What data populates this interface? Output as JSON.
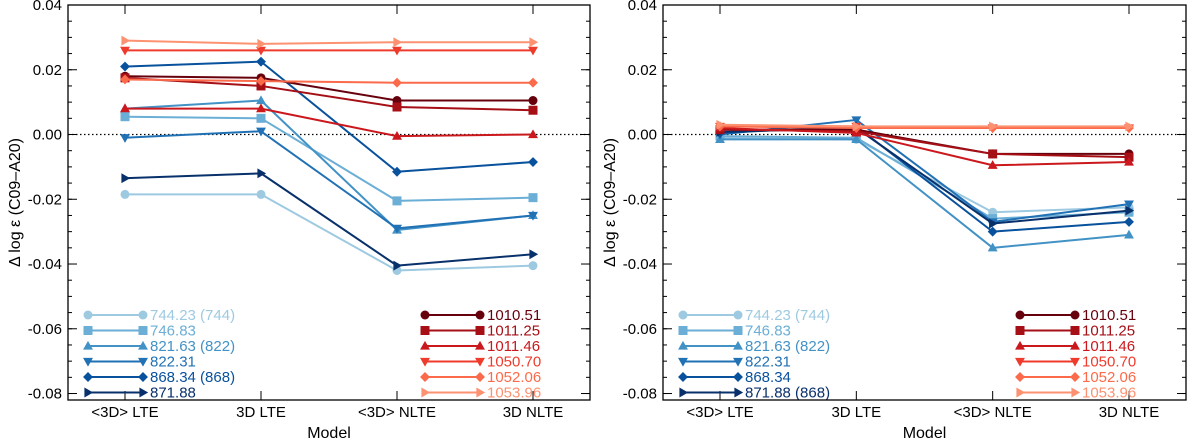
{
  "chart_data": [
    {
      "type": "line",
      "panel": "left",
      "xlabel": "Model",
      "ylabel": "Δ log ε (C09–A20)",
      "categories": [
        "<3D> LTE",
        "3D LTE",
        "<3D> NLTE",
        "3D NLTE"
      ],
      "ylim": [
        -0.082,
        0.04
      ],
      "yticks": [
        "0.04",
        "0.02",
        "0.00",
        "-0.02",
        "-0.04",
        "-0.06",
        "-0.08"
      ],
      "reference_line": 0.0,
      "series": [
        {
          "name": "744.23",
          "tag": "(744)",
          "color": "#9ecae1",
          "marker": "circle",
          "values": [
            -0.0185,
            -0.0185,
            -0.042,
            -0.0405
          ]
        },
        {
          "name": "746.83",
          "tag": "",
          "color": "#6baed6",
          "marker": "square",
          "values": [
            0.0055,
            0.005,
            -0.0205,
            -0.0195
          ]
        },
        {
          "name": "821.63",
          "tag": "(822)",
          "color": "#4292c6",
          "marker": "triangle-up",
          "values": [
            0.008,
            0.0105,
            -0.0295,
            -0.025
          ]
        },
        {
          "name": "822.31",
          "tag": "",
          "color": "#2171b5",
          "marker": "triangle-down",
          "values": [
            -0.001,
            0.001,
            -0.029,
            -0.025
          ]
        },
        {
          "name": "868.34",
          "tag": "(868)",
          "color": "#08519c",
          "marker": "diamond",
          "values": [
            0.021,
            0.0225,
            -0.0115,
            -0.0085
          ]
        },
        {
          "name": "871.88",
          "tag": "",
          "color": "#08306b",
          "marker": "triangle-right",
          "values": [
            -0.0135,
            -0.012,
            -0.0405,
            -0.037
          ]
        },
        {
          "name": "1010.51",
          "tag": "",
          "color": "#67000d",
          "marker": "circle",
          "values": [
            0.018,
            0.0175,
            0.0105,
            0.0105
          ]
        },
        {
          "name": "1011.25",
          "tag": "",
          "color": "#a50f15",
          "marker": "square",
          "values": [
            0.0175,
            0.015,
            0.0085,
            0.0075
          ]
        },
        {
          "name": "1011.46",
          "tag": "",
          "color": "#cb181d",
          "marker": "triangle-up",
          "values": [
            0.008,
            0.008,
            -0.0005,
            0.0
          ]
        },
        {
          "name": "1050.70",
          "tag": "",
          "color": "#ef3b2c",
          "marker": "triangle-down",
          "values": [
            0.026,
            0.026,
            0.026,
            0.026
          ]
        },
        {
          "name": "1052.06",
          "tag": "",
          "color": "#fb6a4a",
          "marker": "diamond",
          "values": [
            0.017,
            0.0165,
            0.016,
            0.016
          ]
        },
        {
          "name": "1053.96",
          "tag": "",
          "color": "#fc9272",
          "marker": "triangle-right",
          "values": [
            0.029,
            0.028,
            0.0285,
            0.0285
          ]
        }
      ]
    },
    {
      "type": "line",
      "panel": "right",
      "xlabel": "Model",
      "ylabel": "Δ log ε (C09–A20)",
      "categories": [
        "<3D> LTE",
        "3D LTE",
        "<3D> NLTE",
        "3D NLTE"
      ],
      "ylim": [
        -0.082,
        0.04
      ],
      "yticks": [
        "0.04",
        "0.02",
        "0.00",
        "-0.02",
        "-0.04",
        "-0.06",
        "-0.08"
      ],
      "reference_line": 0.0,
      "series": [
        {
          "name": "744.23",
          "tag": "(744)",
          "color": "#9ecae1",
          "marker": "circle",
          "values": [
            -0.001,
            -0.0015,
            -0.024,
            -0.0225
          ]
        },
        {
          "name": "746.83",
          "tag": "",
          "color": "#6baed6",
          "marker": "square",
          "values": [
            -0.0005,
            -0.001,
            -0.026,
            -0.024
          ]
        },
        {
          "name": "821.63",
          "tag": "(822)",
          "color": "#4292c6",
          "marker": "triangle-up",
          "values": [
            -0.0015,
            -0.0015,
            -0.035,
            -0.031
          ]
        },
        {
          "name": "822.31",
          "tag": "",
          "color": "#2171b5",
          "marker": "triangle-down",
          "values": [
            0.0,
            0.0045,
            -0.027,
            -0.0215
          ]
        },
        {
          "name": "868.34",
          "tag": "",
          "color": "#08519c",
          "marker": "diamond",
          "values": [
            0.0005,
            0.0025,
            -0.03,
            -0.027
          ]
        },
        {
          "name": "871.88",
          "tag": "(868)",
          "color": "#08306b",
          "marker": "triangle-right",
          "values": [
            0.0008,
            0.002,
            -0.0275,
            -0.0235
          ]
        },
        {
          "name": "1010.51",
          "tag": "",
          "color": "#67000d",
          "marker": "circle",
          "values": [
            0.0015,
            0.0015,
            -0.006,
            -0.006
          ]
        },
        {
          "name": "1011.25",
          "tag": "",
          "color": "#a50f15",
          "marker": "square",
          "values": [
            0.0015,
            0.001,
            -0.006,
            -0.007
          ]
        },
        {
          "name": "1011.46",
          "tag": "",
          "color": "#cb181d",
          "marker": "triangle-up",
          "values": [
            0.002,
            0.0005,
            -0.0095,
            -0.0085
          ]
        },
        {
          "name": "1050.70",
          "tag": "",
          "color": "#ef3b2c",
          "marker": "triangle-down",
          "values": [
            0.0025,
            0.0025,
            0.002,
            0.002
          ]
        },
        {
          "name": "1052.06",
          "tag": "",
          "color": "#fb6a4a",
          "marker": "diamond",
          "values": [
            0.0025,
            0.002,
            0.002,
            0.002
          ]
        },
        {
          "name": "1053.96",
          "tag": "",
          "color": "#fc9272",
          "marker": "triangle-right",
          "values": [
            0.003,
            0.0025,
            0.0025,
            0.0025
          ]
        }
      ]
    }
  ]
}
